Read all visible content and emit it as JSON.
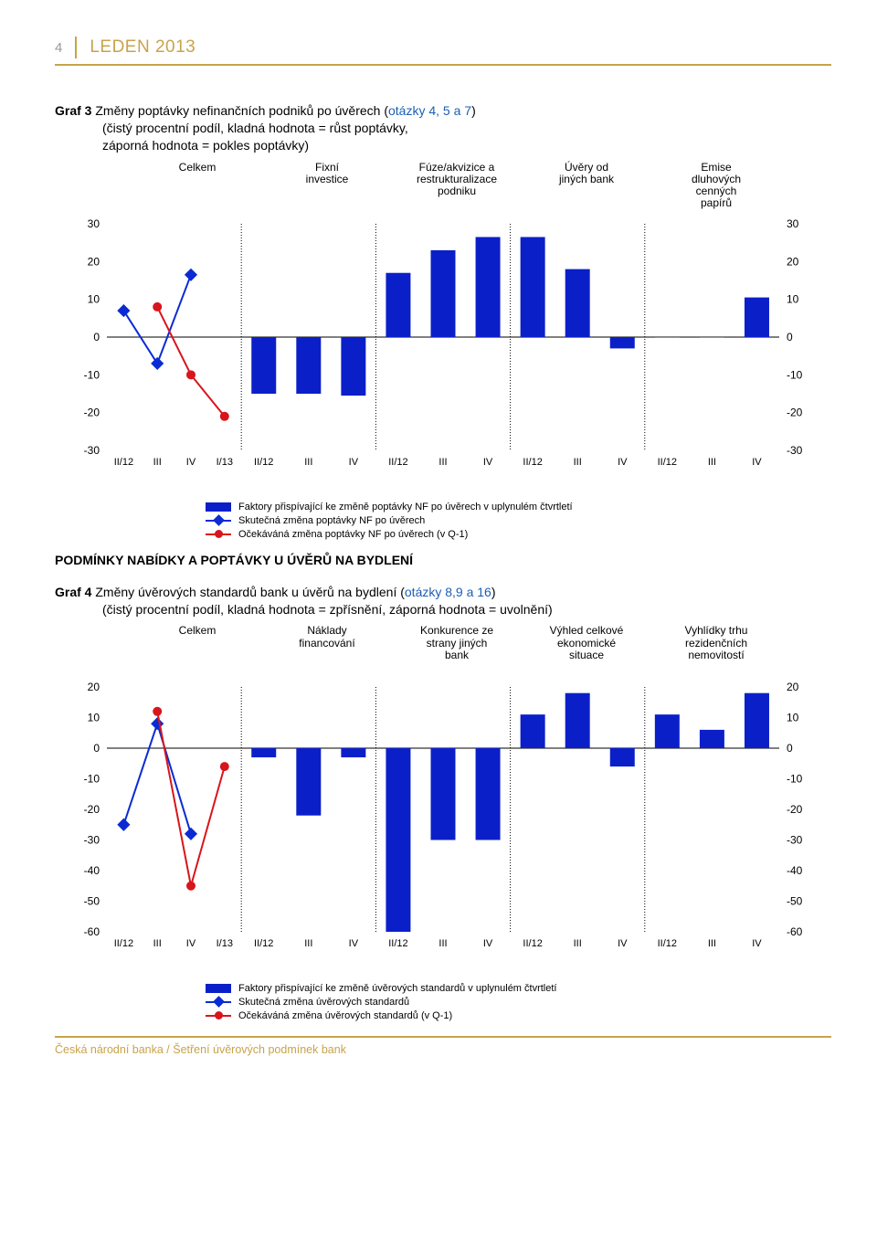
{
  "page": {
    "number": "4",
    "header": "LEDEN 2013",
    "footer": "Česká národní banka / Šetření úvěrových podmínek bank",
    "accent_color": "#c9a34a",
    "link_color": "#1b5fb5"
  },
  "graf3": {
    "title_bold": "Graf 3",
    "title_rest": " Změny poptávky nefinančních podniků po úvěrech (",
    "title_link": "otázky 4, 5 a 7",
    "title_tail": ")",
    "subtitle": "(čistý procentní podíl, kladná hodnota = růst poptávky,\nzáporná hodnota = pokles poptávky)",
    "categories": [
      "Celkem",
      "Fixní\ninvestice",
      "Fúze/akvizice a\nrestrukturalizace\npodniku",
      "Úvěry od\njiných bank",
      "Emise\ndluhových\ncenných\npapírů"
    ],
    "ylim": [
      -30,
      30
    ],
    "ytick_step": 10,
    "xlabels_per_group": [
      [
        "II/12",
        "III",
        "IV",
        "I/13"
      ],
      [
        "II/12",
        "III",
        "IV"
      ],
      [
        "II/12",
        "III",
        "IV"
      ],
      [
        "II/12",
        "III",
        "IV"
      ],
      [
        "II/12",
        "III",
        "IV"
      ]
    ],
    "bars": {
      "groups": [
        [
          -15,
          -15,
          -15.5
        ],
        [
          17,
          23,
          26.5
        ],
        [
          26.5,
          18,
          -3
        ],
        [
          0,
          0,
          10.5
        ]
      ]
    },
    "line_actual": {
      "x": [
        "II/12",
        "III",
        "IV"
      ],
      "y": [
        7,
        -7,
        16.5
      ],
      "color": "#0a2bd3",
      "marker": "diamond"
    },
    "line_expected": {
      "x": [
        "III",
        "IV",
        "I/13"
      ],
      "y": [
        8,
        -10,
        -21
      ],
      "color": "#d8151c",
      "marker": "circle"
    },
    "bar_color": "#0b1fc9",
    "grid_color": "#000",
    "sep_color": "#000"
  },
  "section2_title": "PODMÍNKY NABÍDKY A POPTÁVKY U ÚVĚRŮ NA BYDLENÍ",
  "graf4": {
    "title_bold": "Graf 4",
    "title_rest": " Změny úvěrových standardů bank u úvěrů na bydlení (",
    "title_link": "otázky 8,9 a 16",
    "title_tail": ")",
    "subtitle": "(čistý procentní podíl, kladná hodnota = zpřísnění, záporná hodnota = uvolnění)",
    "categories": [
      "Celkem",
      "Náklady\nfinancování",
      "Konkurence ze\nstrany jiných\nbank",
      "Výhled celkové\nekonomické\nsituace",
      "Vyhlídky trhu\nrezidenčních\nnemovitostí"
    ],
    "ylim": [
      -60,
      20
    ],
    "ytick_step": 10,
    "xlabels_per_group": [
      [
        "II/12",
        "III",
        "IV",
        "I/13"
      ],
      [
        "II/12",
        "III",
        "IV"
      ],
      [
        "II/12",
        "III",
        "IV"
      ],
      [
        "II/12",
        "III",
        "IV"
      ],
      [
        "II/12",
        "III",
        "IV"
      ]
    ],
    "bars": {
      "groups": [
        [
          -3,
          -22,
          -3
        ],
        [
          -60,
          -30,
          -30
        ],
        [
          11,
          18,
          -6
        ],
        [
          11,
          6,
          18
        ]
      ]
    },
    "line_actual": {
      "x": [
        "II/12",
        "III",
        "IV"
      ],
      "y": [
        -25,
        8,
        -28
      ],
      "color": "#0a2bd3",
      "marker": "diamond"
    },
    "line_expected": {
      "x": [
        "III",
        "IV",
        "I/13"
      ],
      "y": [
        12,
        -45,
        -6
      ],
      "color": "#d8151c",
      "marker": "circle"
    },
    "bar_color": "#0b1fc9"
  },
  "legend": {
    "bars_g3": "Faktory přispívající ke změně poptávky NF po úvěrech v uplynulém čtvrtletí",
    "actual_g3": "Skutečná změna poptávky NF po úvěrech",
    "expected_g3": "Očekáváná změna poptávky NF po úvěrech (v Q-1)",
    "bars_g4": "Faktory přispívající ke změně úvěrových standardů v uplynulém čtvrtletí",
    "actual_g4": "Skutečná změna úvěrových standardů",
    "expected_g4": "Očekáváná změna úvěrových standardů (v Q-1)"
  }
}
